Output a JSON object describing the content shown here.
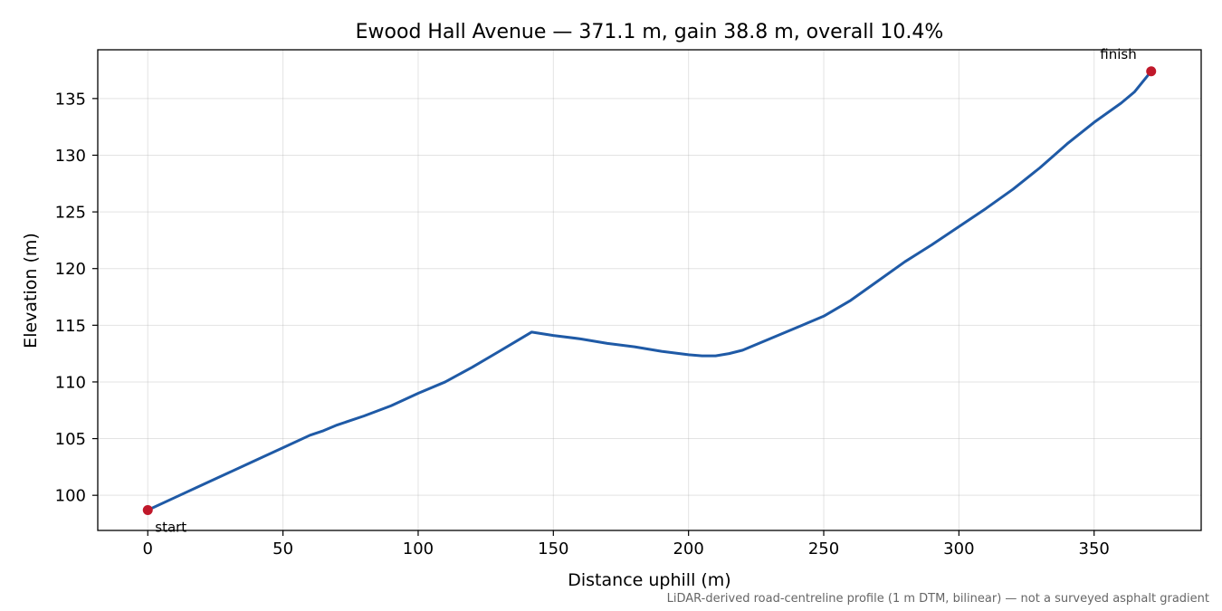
{
  "chart_data": {
    "type": "line",
    "title": "Ewood Hall Avenue — 371.1 m, gain 38.8 m, overall 10.4%",
    "xlabel": "Distance uphill (m)",
    "ylabel": "Elevation (m)",
    "xlim": [
      -18.5,
      389.6
    ],
    "ylim": [
      96.9,
      139.3
    ],
    "xticks": [
      0,
      50,
      100,
      150,
      200,
      250,
      300,
      350
    ],
    "yticks": [
      100,
      105,
      110,
      115,
      120,
      125,
      130,
      135
    ],
    "grid": true,
    "footnote": "LiDAR-derived road-centreline profile (1 m DTM, bilinear) — not a surveyed asphalt gradient",
    "line_color": "#1f5aa6",
    "marker_color": "#c0182a",
    "series": [
      {
        "x": [
          0,
          10,
          20,
          30,
          40,
          50,
          60,
          65,
          70,
          80,
          90,
          100,
          110,
          120,
          130,
          142,
          150,
          160,
          170,
          180,
          190,
          200,
          205,
          210,
          215,
          220,
          230,
          240,
          250,
          260,
          270,
          280,
          290,
          300,
          310,
          320,
          330,
          340,
          350,
          360,
          365,
          371.1
        ],
        "y": [
          98.7,
          99.8,
          100.9,
          102.0,
          103.1,
          104.2,
          105.3,
          105.7,
          106.2,
          107.0,
          107.9,
          109.0,
          110.0,
          111.3,
          112.7,
          114.4,
          114.1,
          113.8,
          113.4,
          113.1,
          112.7,
          112.4,
          112.3,
          112.3,
          112.5,
          112.8,
          113.8,
          114.8,
          115.8,
          117.2,
          118.9,
          120.6,
          122.1,
          123.7,
          125.3,
          127.0,
          128.9,
          131.0,
          132.9,
          134.6,
          135.6,
          137.4
        ]
      }
    ],
    "annotations": [
      {
        "label": "start",
        "x": 0,
        "y": 98.7
      },
      {
        "label": "finish",
        "x": 371.1,
        "y": 137.4
      }
    ]
  }
}
